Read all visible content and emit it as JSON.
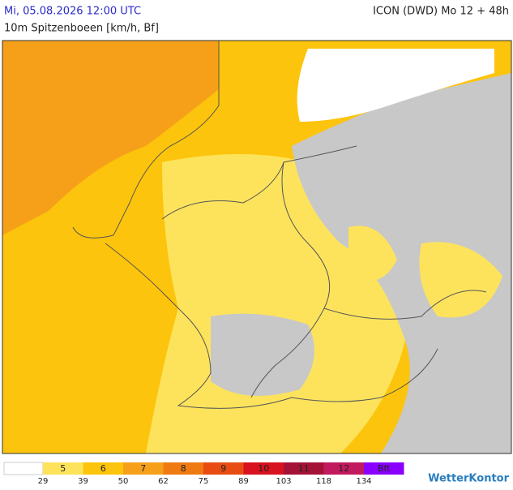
{
  "header": {
    "datetime": "Mi, 05.08.2026 12:00 UTC",
    "model": "ICON (DWD) Mo 12 + 48h",
    "title": "10m Spitzenboeen [km/h, Bf]"
  },
  "legend": {
    "items": [
      {
        "label": "5",
        "color": "#fde35c"
      },
      {
        "label": "6",
        "color": "#fcc40c"
      },
      {
        "label": "7",
        "color": "#f6a01a"
      },
      {
        "label": "8",
        "color": "#ef7a12"
      },
      {
        "label": "9",
        "color": "#e84c12"
      },
      {
        "label": "10",
        "color": "#d8121e"
      },
      {
        "label": "11",
        "color": "#a51238"
      },
      {
        "label": "12",
        "color": "#c21a5e"
      },
      {
        "label": "Bft",
        "color": "#8a00ff"
      }
    ],
    "thresholds": [
      29,
      39,
      50,
      62,
      75,
      89,
      103,
      118,
      134
    ]
  },
  "brand": "WetterKontor"
}
